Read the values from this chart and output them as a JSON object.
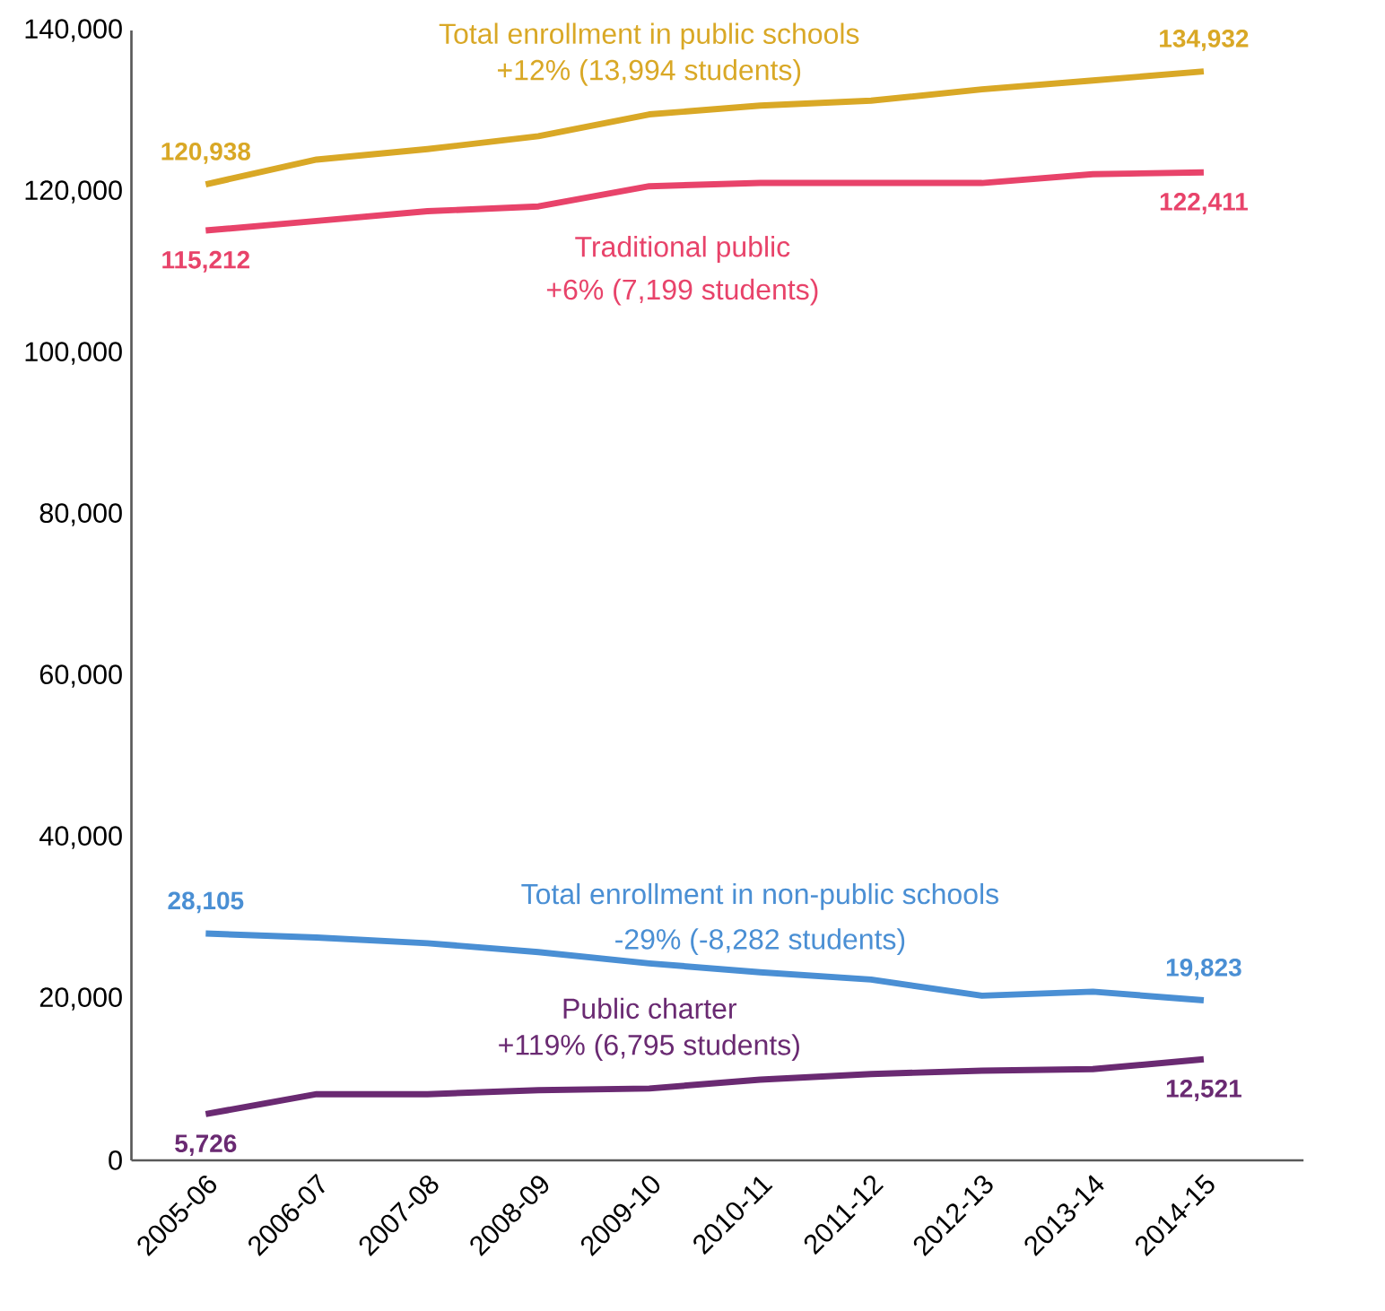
{
  "chart_data": {
    "type": "line",
    "categories": [
      "2005-06",
      "2006-07",
      "2007-08",
      "2008-09",
      "2009-10",
      "2010-11",
      "2011-12",
      "2012-13",
      "2013-14",
      "2014-15"
    ],
    "series": [
      {
        "name": "Total enrollment in public schools",
        "color": "#d9a826",
        "values": [
          120938,
          124000,
          125300,
          126900,
          129600,
          130700,
          131300,
          132700,
          133800,
          134932
        ],
        "value_labels": [
          "120,938",
          null,
          null,
          null,
          null,
          null,
          null,
          null,
          null,
          "134,932"
        ]
      },
      {
        "name": "Traditional public",
        "color": "#e8436a",
        "values": [
          115212,
          116400,
          117600,
          118200,
          120700,
          121100,
          121100,
          121100,
          122200,
          122411
        ],
        "value_labels": [
          "115,212",
          null,
          null,
          null,
          null,
          null,
          null,
          null,
          null,
          "122,411"
        ]
      },
      {
        "name": "Total enrollment in non-public schools",
        "color": "#4a8fd4",
        "values": [
          28105,
          27600,
          26900,
          25800,
          24400,
          23300,
          22400,
          20400,
          20900,
          19823
        ],
        "value_labels": [
          "28,105",
          null,
          null,
          null,
          null,
          null,
          null,
          null,
          null,
          "19,823"
        ]
      },
      {
        "name": "Public charter",
        "color": "#6a2a72",
        "values": [
          5726,
          8200,
          8200,
          8700,
          8900,
          10000,
          10700,
          11100,
          11300,
          12521
        ],
        "value_labels": [
          "5,726",
          null,
          null,
          null,
          null,
          null,
          null,
          null,
          null,
          "12,521"
        ]
      }
    ],
    "annotations": [
      "+12% (13,994 students)",
      "+6% (7,199 students)",
      "-29% (-8,282 students)",
      "+119% (6,795 students)"
    ],
    "ylim": [
      0,
      140000
    ],
    "yticks": [
      0,
      {
        "value": 20000,
        "label": "20,000"
      },
      {
        "value": 40000,
        "label": "40,000"
      },
      {
        "value": 60000,
        "label": "60,000"
      },
      {
        "value": 80000,
        "label": "80,000"
      },
      {
        "value": 100000,
        "label": "100,000"
      },
      {
        "value": 120000,
        "label": "120,000"
      },
      {
        "value": 140000,
        "label": "140,000"
      }
    ]
  }
}
